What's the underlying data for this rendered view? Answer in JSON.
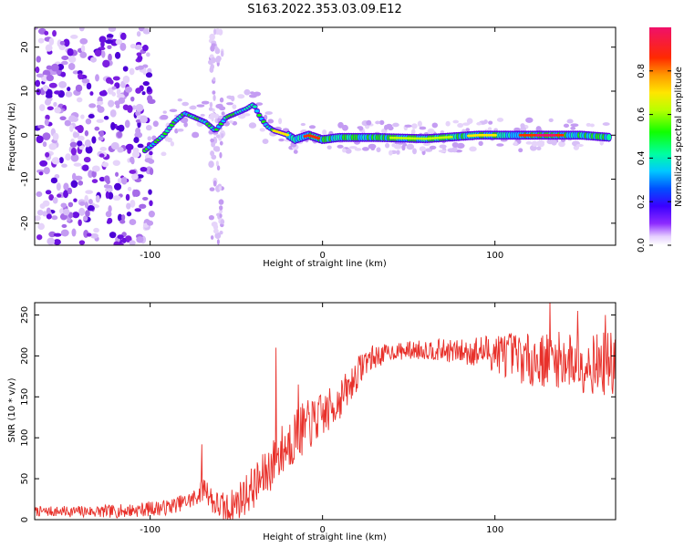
{
  "title": "S163.2022.353.03.09.E12",
  "chart_data": [
    {
      "type": "heatmap",
      "xlabel": "Height of straight line (km)",
      "ylabel": "Frequency (Hz)",
      "xlim": [
        -167,
        170
      ],
      "ylim": [
        -25,
        24.5
      ],
      "xticks": [
        -100,
        0,
        100
      ],
      "xtick_labels": [
        "-100",
        "0",
        "100"
      ],
      "yticks": [
        -20,
        -10,
        0,
        10,
        20
      ],
      "ytick_labels": [
        "-20",
        "-10",
        "0",
        "10",
        "20"
      ],
      "signal_track": {
        "x": [
          -103,
          -98,
          -92,
          -86,
          -80,
          -74,
          -68,
          -62,
          -56,
          -50,
          -44,
          -40,
          -36,
          -32,
          -28,
          -24,
          -20,
          -16,
          -12,
          -8,
          -4,
          0,
          10,
          30,
          60,
          90,
          120,
          150,
          167
        ],
        "freq": [
          -3.5,
          -2,
          0,
          3,
          5,
          4,
          3,
          1,
          4,
          5,
          6,
          7,
          4,
          2,
          1,
          0.5,
          0,
          -1,
          -0.5,
          0,
          -0.5,
          -1,
          -0.5,
          -0.5,
          -0.8,
          0,
          0,
          0,
          -0.5
        ]
      },
      "colorbar": {
        "label": "Normalized spectral amplitude",
        "range": [
          0,
          1
        ],
        "ticks": [
          0.0,
          0.2,
          0.4,
          0.6,
          0.8
        ],
        "tick_labels": [
          "0.0",
          "0.2",
          "0.4",
          "0.6",
          "0.8"
        ]
      }
    },
    {
      "type": "line",
      "xlabel": "Height of straight line (km)",
      "ylabel": "SNR (10 * v/v)",
      "xlim": [
        -167,
        170
      ],
      "ylim": [
        0,
        265
      ],
      "xticks": [
        -100,
        0,
        100
      ],
      "xtick_labels": [
        "-100",
        "0",
        "100"
      ],
      "yticks": [
        0,
        50,
        100,
        150,
        200,
        250
      ],
      "ytick_labels": [
        "0",
        "50",
        "100",
        "150",
        "200",
        "250"
      ],
      "color": "#e8302a",
      "trend": {
        "x": [
          -167,
          -120,
          -90,
          -75,
          -68,
          -63,
          -55,
          -45,
          -35,
          -25,
          -15,
          -5,
          5,
          15,
          25,
          40,
          60,
          80,
          100,
          120,
          140,
          160,
          170
        ],
        "y": [
          10,
          10,
          15,
          25,
          40,
          20,
          12,
          30,
          50,
          80,
          105,
          120,
          135,
          160,
          195,
          205,
          208,
          205,
          205,
          195,
          195,
          190,
          190
        ]
      },
      "noise_amplitude": [
        {
          "x": -167,
          "amp": 6
        },
        {
          "x": -80,
          "amp": 10
        },
        {
          "x": -45,
          "amp": 25
        },
        {
          "x": -20,
          "amp": 35
        },
        {
          "x": 10,
          "amp": 25
        },
        {
          "x": 40,
          "amp": 10
        },
        {
          "x": 80,
          "amp": 15
        },
        {
          "x": 110,
          "amp": 30
        },
        {
          "x": 170,
          "amp": 40
        }
      ],
      "spikes": [
        {
          "x": -70,
          "y": 92
        },
        {
          "x": -27,
          "y": 210
        },
        {
          "x": -14,
          "y": 165
        },
        {
          "x": 132,
          "y": 268
        },
        {
          "x": 148,
          "y": 255
        },
        {
          "x": 164,
          "y": 250
        }
      ]
    }
  ]
}
